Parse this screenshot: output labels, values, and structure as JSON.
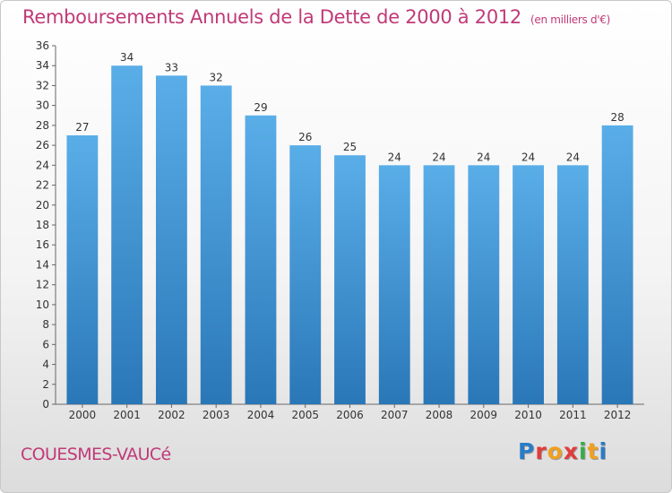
{
  "header": {
    "title": "Remboursements Annuels de la Dette de 2000 à 2012",
    "unit": "(en milliers d'€)"
  },
  "footer": {
    "commune": "COUESMES-VAUCé",
    "logo": "Proxiti"
  },
  "colors": {
    "bar_light": "#5aaee8",
    "bar_dark": "#2a77b8",
    "title": "#c03a78"
  },
  "chart_data": {
    "type": "bar",
    "title": "Remboursements Annuels de la Dette de 2000 à 2012",
    "categories": [
      "2000",
      "2001",
      "2002",
      "2003",
      "2004",
      "2005",
      "2006",
      "2007",
      "2008",
      "2009",
      "2010",
      "2011",
      "2012"
    ],
    "values": [
      27,
      34,
      33,
      32,
      29,
      26,
      25,
      24,
      24,
      24,
      24,
      24,
      28
    ],
    "xlabel": "",
    "ylabel": "",
    "ylim": [
      0,
      36
    ],
    "yticks": [
      0,
      2,
      4,
      6,
      8,
      10,
      12,
      14,
      16,
      18,
      20,
      22,
      24,
      26,
      28,
      30,
      32,
      34,
      36
    ],
    "grid": false,
    "legend": "none",
    "data_labels": true
  }
}
